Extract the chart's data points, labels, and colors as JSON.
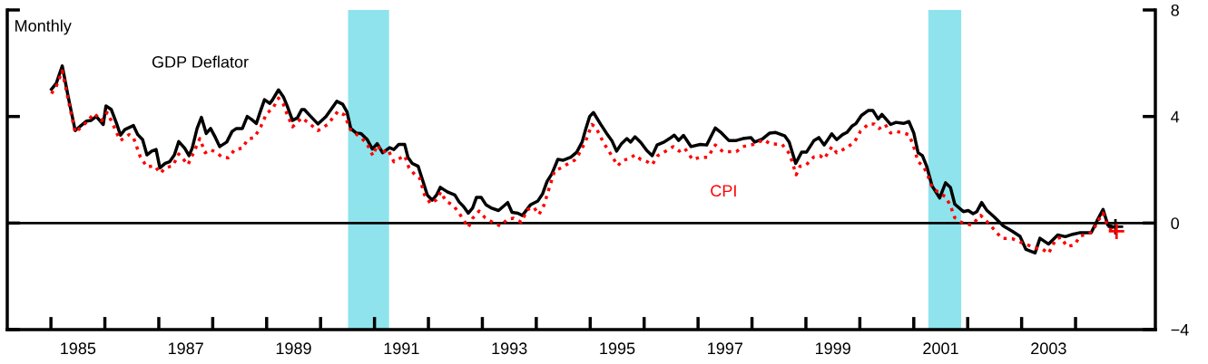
{
  "chart_data": {
    "type": "line",
    "ylabel": "Monthly",
    "xlim": [
      1984.19,
      2005.48
    ],
    "ylim": [
      -4,
      8
    ],
    "xticks": [
      {
        "value": 1985,
        "label": null
      },
      {
        "value": 1985.5,
        "label": "1985"
      },
      {
        "value": 1986,
        "label": null
      },
      {
        "value": 1987,
        "label": null
      },
      {
        "value": 1987.5,
        "label": "1987"
      },
      {
        "value": 1988,
        "label": null
      },
      {
        "value": 1989,
        "label": null
      },
      {
        "value": 1989.5,
        "label": "1989"
      },
      {
        "value": 1990,
        "label": null
      },
      {
        "value": 1991,
        "label": null
      },
      {
        "value": 1991.5,
        "label": "1991"
      },
      {
        "value": 1992,
        "label": null
      },
      {
        "value": 1993,
        "label": null
      },
      {
        "value": 1993.5,
        "label": "1993"
      },
      {
        "value": 1994,
        "label": null
      },
      {
        "value": 1995,
        "label": null
      },
      {
        "value": 1995.5,
        "label": "1995"
      },
      {
        "value": 1996,
        "label": null
      },
      {
        "value": 1997,
        "label": null
      },
      {
        "value": 1997.5,
        "label": "1997"
      },
      {
        "value": 1998,
        "label": null
      },
      {
        "value": 1999,
        "label": null
      },
      {
        "value": 1999.5,
        "label": "1999"
      },
      {
        "value": 2000,
        "label": null
      },
      {
        "value": 2001,
        "label": null
      },
      {
        "value": 2001.5,
        "label": "2001"
      },
      {
        "value": 2002,
        "label": null
      },
      {
        "value": 2003,
        "label": null
      },
      {
        "value": 2003.5,
        "label": "2003"
      },
      {
        "value": 2004,
        "label": null
      }
    ],
    "yticks": [
      {
        "value": -4,
        "label": "−4"
      },
      0,
      4,
      8
    ],
    "grid": false,
    "legend": false,
    "ref_lines": [
      {
        "axis": "y",
        "value": 0,
        "color": "#000000"
      }
    ],
    "bands": [
      {
        "axis": "x",
        "from": 1990.51,
        "to": 1991.27,
        "color": "#8fe3ec"
      },
      {
        "axis": "x",
        "from": 2001.27,
        "to": 2001.88,
        "color": "#8fe3ec"
      }
    ],
    "series": [
      {
        "name": "GDP Deflator",
        "color": "#000000",
        "line_style": "solid",
        "x": [
          1985.01,
          1985.1,
          1985.21,
          1985.32,
          1985.45,
          1985.54,
          1985.66,
          1985.74,
          1985.84,
          1985.97,
          1986.02,
          1986.12,
          1986.22,
          1986.29,
          1986.37,
          1986.53,
          1986.61,
          1986.7,
          1986.78,
          1986.87,
          1986.95,
          1987.02,
          1987.12,
          1987.2,
          1987.29,
          1987.37,
          1987.48,
          1987.56,
          1987.62,
          1987.71,
          1987.79,
          1987.88,
          1987.96,
          1988.05,
          1988.13,
          1988.26,
          1988.36,
          1988.44,
          1988.55,
          1988.64,
          1988.72,
          1988.81,
          1988.88,
          1988.96,
          1989.06,
          1989.11,
          1989.22,
          1989.31,
          1989.38,
          1989.48,
          1989.57,
          1989.65,
          1989.7,
          1989.79,
          1989.95,
          1990.1,
          1990.3,
          1990.41,
          1990.49,
          1990.56,
          1990.66,
          1990.75,
          1990.86,
          1990.96,
          1991.05,
          1991.15,
          1991.28,
          1991.36,
          1991.45,
          1991.56,
          1991.62,
          1991.7,
          1991.81,
          1991.9,
          1991.98,
          1992.07,
          1992.15,
          1992.22,
          1992.35,
          1992.49,
          1992.57,
          1992.66,
          1992.74,
          1992.82,
          1992.89,
          1992.98,
          1993.07,
          1993.16,
          1993.3,
          1993.47,
          1993.55,
          1993.66,
          1993.74,
          1993.89,
          1994.03,
          1994.12,
          1994.2,
          1994.29,
          1994.4,
          1994.5,
          1994.64,
          1994.75,
          1994.85,
          1994.92,
          1994.99,
          1995.06,
          1995.19,
          1995.3,
          1995.4,
          1995.49,
          1995.58,
          1995.68,
          1995.75,
          1995.83,
          1995.94,
          1996.05,
          1996.15,
          1996.24,
          1996.37,
          1996.47,
          1996.56,
          1996.64,
          1996.73,
          1996.87,
          1997.04,
          1997.16,
          1997.32,
          1997.42,
          1997.57,
          1997.71,
          1997.83,
          1997.98,
          1998.05,
          1998.19,
          1998.33,
          1998.44,
          1998.61,
          1998.69,
          1998.81,
          1998.92,
          1999.01,
          1999.15,
          1999.24,
          1999.34,
          1999.48,
          1999.57,
          1999.68,
          1999.76,
          1999.85,
          1999.93,
          2000.03,
          2000.16,
          2000.24,
          2000.34,
          2000.41,
          2000.57,
          2000.67,
          2000.81,
          2000.91,
          2001.0,
          2001.08,
          2001.16,
          2001.24,
          2001.34,
          2001.48,
          2001.59,
          2001.68,
          2001.76,
          2001.92,
          2002.01,
          2002.1,
          2002.17,
          2002.26,
          2002.35,
          2002.49,
          2002.66,
          2002.83,
          2002.97,
          2003.08,
          2003.25,
          2003.34,
          2003.5,
          2003.67,
          2003.81,
          2003.95,
          2004.09,
          2004.29,
          2004.4,
          2004.51,
          2004.6,
          2004.69
        ],
        "values": [
          5.02,
          5.25,
          5.9,
          4.74,
          3.47,
          3.63,
          3.83,
          3.85,
          4.0,
          3.7,
          4.4,
          4.26,
          3.72,
          3.3,
          3.51,
          3.66,
          3.32,
          3.13,
          2.56,
          2.7,
          2.76,
          2.07,
          2.24,
          2.3,
          2.56,
          3.06,
          2.81,
          2.53,
          2.81,
          3.55,
          3.97,
          3.36,
          3.55,
          3.21,
          2.87,
          3.04,
          3.44,
          3.55,
          3.55,
          4.0,
          3.89,
          3.74,
          4.17,
          4.63,
          4.49,
          4.63,
          5.0,
          4.74,
          4.4,
          3.85,
          3.95,
          4.26,
          4.26,
          4.06,
          3.72,
          4.0,
          4.57,
          4.46,
          4.17,
          3.55,
          3.38,
          3.36,
          3.15,
          2.78,
          2.98,
          2.64,
          2.83,
          2.76,
          2.95,
          2.95,
          2.47,
          2.24,
          2.13,
          1.56,
          1.05,
          0.86,
          1.05,
          1.34,
          1.17,
          1.05,
          0.79,
          0.6,
          0.37,
          0.57,
          0.96,
          0.96,
          0.68,
          0.57,
          0.47,
          0.77,
          0.4,
          0.37,
          0.28,
          0.68,
          0.83,
          1.11,
          1.56,
          1.85,
          2.39,
          2.36,
          2.47,
          2.66,
          3.04,
          3.55,
          4.0,
          4.15,
          3.72,
          3.38,
          3.1,
          2.7,
          2.98,
          3.17,
          3.04,
          3.24,
          3.02,
          2.72,
          2.53,
          2.93,
          3.04,
          3.17,
          3.3,
          3.1,
          3.29,
          2.87,
          2.95,
          2.93,
          3.57,
          3.41,
          3.1,
          3.1,
          3.17,
          3.21,
          3.04,
          3.15,
          3.38,
          3.4,
          3.27,
          3.04,
          2.24,
          2.66,
          2.66,
          3.1,
          3.21,
          2.93,
          3.35,
          3.13,
          3.32,
          3.4,
          3.63,
          3.74,
          4.04,
          4.23,
          4.23,
          3.91,
          4.08,
          3.7,
          3.78,
          3.74,
          3.81,
          3.38,
          2.64,
          2.53,
          2.13,
          1.39,
          0.94,
          1.51,
          1.34,
          0.71,
          0.43,
          0.47,
          0.35,
          0.43,
          0.77,
          0.49,
          0.23,
          -0.11,
          -0.31,
          -0.5,
          -0.99,
          -1.12,
          -0.57,
          -0.79,
          -0.45,
          -0.51,
          -0.42,
          -0.36,
          -0.36,
          0.09,
          0.51,
          -0.08,
          -0.14
        ]
      },
      {
        "name": "CPI",
        "color": "#ff0000",
        "line_style": "dotted",
        "x": [
          1985.01,
          1985.1,
          1985.21,
          1985.32,
          1985.45,
          1985.66,
          1985.8,
          1985.94,
          1986.04,
          1986.12,
          1986.22,
          1986.29,
          1986.45,
          1986.53,
          1986.66,
          1986.78,
          1986.92,
          1987.03,
          1987.12,
          1987.26,
          1987.37,
          1987.45,
          1987.54,
          1987.62,
          1987.76,
          1987.86,
          1987.96,
          1988.07,
          1988.18,
          1988.29,
          1988.41,
          1988.55,
          1988.65,
          1988.77,
          1988.89,
          1989.0,
          1989.11,
          1989.22,
          1989.31,
          1989.38,
          1989.48,
          1989.65,
          1989.79,
          1989.95,
          1990.13,
          1990.32,
          1990.44,
          1990.56,
          1990.75,
          1990.86,
          1990.97,
          1991.05,
          1991.15,
          1991.25,
          1991.36,
          1991.45,
          1991.56,
          1991.64,
          1991.76,
          1991.84,
          1991.93,
          1992.04,
          1992.15,
          1992.23,
          1992.32,
          1992.46,
          1992.57,
          1992.66,
          1992.74,
          1992.82,
          1992.94,
          1993.05,
          1993.19,
          1993.33,
          1993.47,
          1993.58,
          1993.72,
          1993.84,
          1993.95,
          1994.05,
          1994.14,
          1994.23,
          1994.34,
          1994.46,
          1994.6,
          1994.71,
          1994.79,
          1994.91,
          1995.03,
          1995.1,
          1995.24,
          1995.38,
          1995.51,
          1995.61,
          1995.72,
          1995.83,
          1995.94,
          1996.06,
          1996.15,
          1996.25,
          1996.4,
          1996.54,
          1996.65,
          1996.75,
          1996.9,
          1997.04,
          1997.18,
          1997.32,
          1997.46,
          1997.71,
          1997.83,
          1998.02,
          1998.22,
          1998.33,
          1998.56,
          1998.7,
          1998.82,
          1998.89,
          1999.01,
          1999.15,
          1999.26,
          1999.34,
          1999.48,
          1999.57,
          1999.74,
          1999.9,
          2000.01,
          2000.16,
          2000.27,
          2000.36,
          2000.47,
          2000.57,
          2000.67,
          2000.81,
          2000.91,
          2000.99,
          2001.08,
          2001.18,
          2001.26,
          2001.34,
          2001.48,
          2001.59,
          2001.68,
          2001.76,
          2001.88,
          2002.07,
          2002.15,
          2002.24,
          2002.38,
          2002.52,
          2002.63,
          2002.83,
          2002.97,
          2003.11,
          2003.25,
          2003.36,
          2003.5,
          2003.64,
          2003.73,
          2003.84,
          2003.98,
          2004.09,
          2004.23,
          2004.32,
          2004.4,
          2004.51,
          2004.6,
          2004.69
        ],
        "values": [
          4.86,
          5.14,
          5.71,
          4.63,
          3.4,
          3.78,
          4.12,
          3.84,
          4.15,
          3.84,
          3.38,
          3.1,
          3.32,
          3.21,
          2.47,
          2.11,
          2.15,
          1.87,
          2.07,
          2.15,
          2.59,
          2.41,
          2.19,
          2.53,
          3.17,
          2.64,
          2.76,
          2.64,
          2.47,
          2.45,
          2.76,
          2.81,
          3.15,
          3.21,
          3.61,
          4.12,
          4.29,
          4.69,
          4.46,
          4.08,
          3.61,
          3.95,
          3.74,
          3.47,
          3.7,
          4.19,
          4.06,
          3.49,
          3.21,
          2.98,
          2.53,
          2.93,
          2.64,
          2.76,
          2.3,
          2.41,
          2.53,
          2.07,
          1.79,
          1.67,
          1.05,
          0.73,
          0.88,
          1.17,
          0.83,
          0.66,
          0.37,
          0.09,
          -0.16,
          0.18,
          0.45,
          0.2,
          0.03,
          -0.11,
          0.15,
          0.18,
          0.03,
          0.51,
          0.6,
          0.32,
          0.66,
          1.25,
          1.96,
          2.07,
          2.24,
          2.36,
          2.59,
          3.04,
          3.7,
          3.61,
          3.04,
          2.59,
          2.15,
          2.36,
          2.41,
          2.56,
          2.38,
          2.3,
          2.19,
          2.53,
          2.7,
          2.87,
          2.7,
          2.81,
          2.38,
          2.47,
          2.47,
          2.93,
          2.68,
          2.68,
          2.87,
          2.95,
          3.13,
          2.98,
          2.95,
          2.59,
          1.81,
          2.13,
          2.19,
          2.49,
          2.53,
          2.41,
          2.87,
          2.64,
          2.81,
          3.04,
          3.44,
          3.72,
          3.72,
          3.55,
          3.7,
          3.38,
          3.44,
          3.38,
          3.32,
          2.93,
          2.3,
          2.13,
          1.79,
          1.34,
          1.11,
          0.99,
          0.65,
          0.2,
          0.03,
          -0.08,
          0.09,
          0.29,
          0.0,
          -0.31,
          -0.57,
          -0.59,
          -0.71,
          -0.82,
          -0.94,
          -0.94,
          -1.14,
          -0.59,
          -0.54,
          -0.88,
          -0.82,
          -0.48,
          -0.42,
          -0.31,
          0.03,
          0.37,
          -0.14,
          -0.27
        ]
      },
      {
        "type": "scatter",
        "marker": "cross",
        "color": "#000000",
        "x": [
          2004.74
        ],
        "values": [
          -0.14
        ]
      },
      {
        "type": "scatter",
        "marker": "cross",
        "color": "#ff0000",
        "x": [
          2004.76
        ],
        "values": [
          -0.31
        ]
      }
    ]
  }
}
